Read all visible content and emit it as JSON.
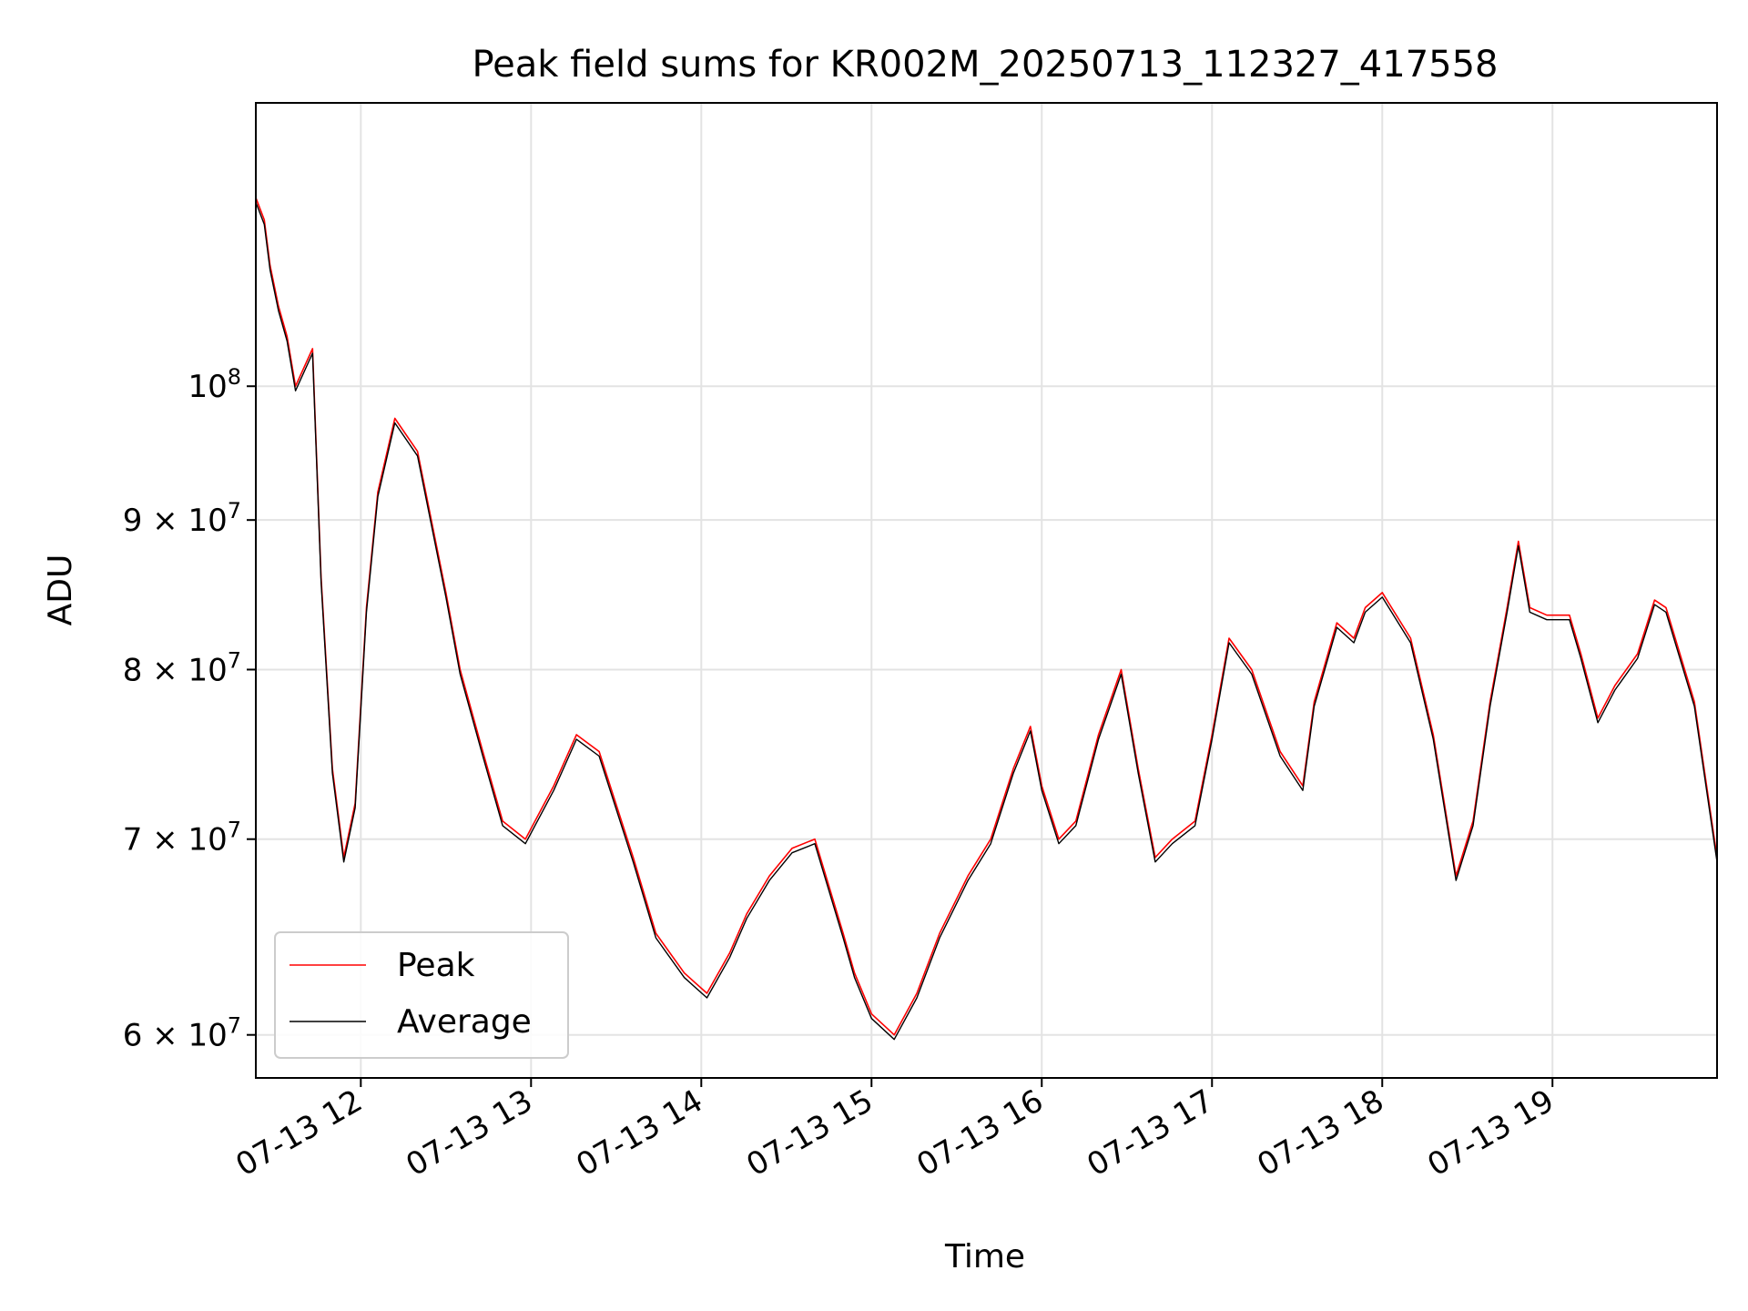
{
  "chart_data": {
    "type": "line",
    "title": "Peak field sums for KR002M_20250713_112327_417558",
    "xlabel": "Time",
    "ylabel": "ADU",
    "yscale": "log",
    "xlim": [
      "07-13 11:23",
      "07-13 19:58"
    ],
    "ylim": [
      58000000,
      125000000
    ],
    "grid": true,
    "legend_position": "lower-left",
    "xticks": [
      "07-13 12",
      "07-13 13",
      "07-13 14",
      "07-13 15",
      "07-13 16",
      "07-13 17",
      "07-13 18",
      "07-13 19"
    ],
    "xtick_values": [
      "07-13 12:00",
      "07-13 13:00",
      "07-13 14:00",
      "07-13 15:00",
      "07-13 16:00",
      "07-13 17:00",
      "07-13 18:00",
      "07-13 19:00"
    ],
    "yticks": [
      {
        "value": 60000000,
        "mantissa": "6",
        "exponent": "7"
      },
      {
        "value": 70000000,
        "mantissa": "7",
        "exponent": "7"
      },
      {
        "value": 80000000,
        "mantissa": "8",
        "exponent": "7"
      },
      {
        "value": 90000000,
        "mantissa": "9",
        "exponent": "7"
      },
      {
        "value": 100000000,
        "mantissa": "",
        "exponent": "8"
      }
    ],
    "series": [
      {
        "name": "Peak",
        "color": "#ff0000",
        "x": [
          "07-13 11:23",
          "07-13 11:26",
          "07-13 11:28",
          "07-13 11:31",
          "07-13 11:34",
          "07-13 11:37",
          "07-13 11:40",
          "07-13 11:43",
          "07-13 11:46",
          "07-13 11:50",
          "07-13 11:54",
          "07-13 11:58",
          "07-13 12:02",
          "07-13 12:06",
          "07-13 12:12",
          "07-13 12:20",
          "07-13 12:30",
          "07-13 12:35",
          "07-13 12:43",
          "07-13 12:50",
          "07-13 12:58",
          "07-13 13:08",
          "07-13 13:16",
          "07-13 13:24",
          "07-13 13:36",
          "07-13 13:44",
          "07-13 13:54",
          "07-13 14:02",
          "07-13 14:10",
          "07-13 14:16",
          "07-13 14:24",
          "07-13 14:32",
          "07-13 14:40",
          "07-13 14:50",
          "07-13 14:54",
          "07-13 15:00",
          "07-13 15:08",
          "07-13 15:16",
          "07-13 15:24",
          "07-13 15:34",
          "07-13 15:42",
          "07-13 15:50",
          "07-13 15:56",
          "07-13 16:00",
          "07-13 16:06",
          "07-13 16:12",
          "07-13 16:20",
          "07-13 16:28",
          "07-13 16:34",
          "07-13 16:40",
          "07-13 16:46",
          "07-13 16:54",
          "07-13 17:00",
          "07-13 17:06",
          "07-13 17:14",
          "07-13 17:24",
          "07-13 17:32",
          "07-13 17:36",
          "07-13 17:44",
          "07-13 17:50",
          "07-13 17:54",
          "07-13 18:00",
          "07-13 18:10",
          "07-13 18:18",
          "07-13 18:26",
          "07-13 18:32",
          "07-13 18:38",
          "07-13 18:44",
          "07-13 18:48",
          "07-13 18:52",
          "07-13 18:58",
          "07-13 19:06",
          "07-13 19:10",
          "07-13 19:16",
          "07-13 19:22",
          "07-13 19:30",
          "07-13 19:36",
          "07-13 19:40",
          "07-13 19:50",
          "07-13 19:58"
        ],
        "y": [
          116000000,
          114000000,
          110000000,
          106500000,
          104000000,
          100000000,
          101500000,
          103000000,
          86000000,
          74000000,
          69000000,
          72000000,
          84000000,
          92000000,
          97500000,
          95000000,
          85000000,
          80000000,
          75000000,
          71000000,
          70000000,
          73000000,
          76000000,
          75000000,
          69000000,
          65000000,
          63000000,
          62000000,
          64000000,
          66000000,
          68000000,
          69500000,
          70000000,
          65000000,
          63000000,
          61000000,
          60000000,
          62000000,
          65000000,
          68000000,
          70000000,
          74000000,
          76500000,
          73000000,
          70000000,
          71000000,
          76000000,
          80000000,
          74000000,
          69000000,
          70000000,
          71000000,
          76000000,
          82000000,
          80000000,
          75000000,
          73000000,
          78000000,
          83000000,
          82000000,
          84000000,
          85000000,
          82000000,
          76000000,
          68000000,
          71000000,
          78000000,
          84000000,
          88500000,
          84000000,
          83500000,
          83500000,
          81000000,
          77000000,
          79000000,
          81000000,
          84500000,
          84000000,
          78000000,
          69000000
        ]
      },
      {
        "name": "Average",
        "color": "#000000"
      }
    ]
  }
}
